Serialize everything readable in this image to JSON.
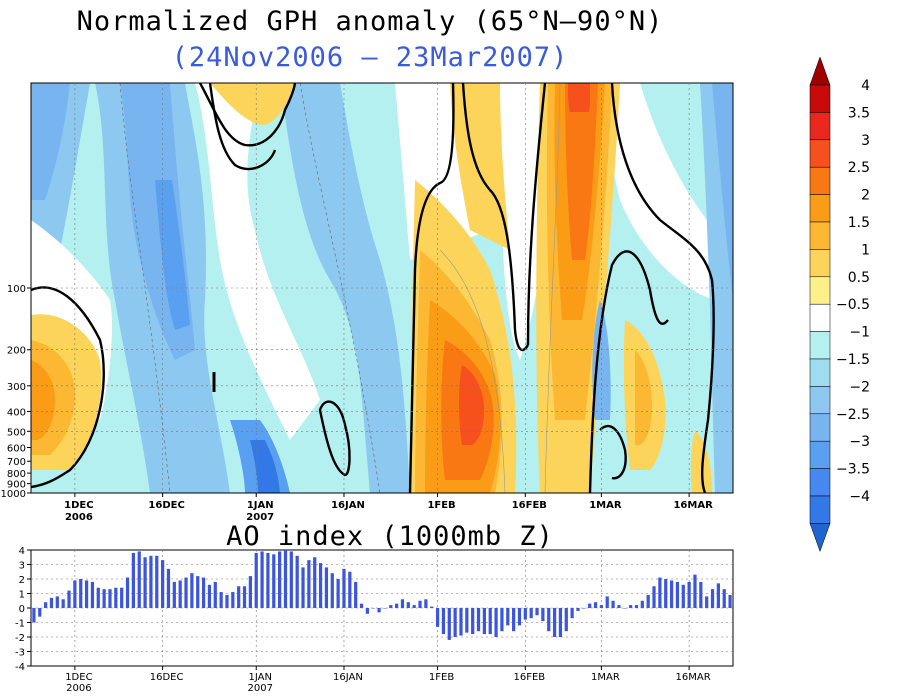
{
  "title": "Normalized GPH anomaly (65°N–90°N)",
  "subtitle": "(24Nov2006 – 23Mar2007)",
  "ao_title": "AO index (1000mb Z)",
  "chart_data": [
    {
      "type": "heatmap",
      "title": "Normalized GPH anomaly (65°N–90°N)",
      "subtitle": "(24Nov2006 – 23Mar2007)",
      "x_range": [
        "24Nov2006",
        "23Mar2007"
      ],
      "x_ticks": [
        {
          "day": 7,
          "label": "1DEC",
          "sub": "2006"
        },
        {
          "day": 22,
          "label": "16DEC",
          "sub": ""
        },
        {
          "day": 38,
          "label": "1JAN",
          "sub": "2007"
        },
        {
          "day": 53,
          "label": "16JAN",
          "sub": ""
        },
        {
          "day": 69,
          "label": "1FEB",
          "sub": ""
        },
        {
          "day": 84,
          "label": "16FEB",
          "sub": ""
        },
        {
          "day": 97,
          "label": "1MAR",
          "sub": ""
        },
        {
          "day": 112,
          "label": "16MAR",
          "sub": ""
        }
      ],
      "y_ticks": [
        "100",
        "200",
        "300",
        "400",
        "500",
        "600",
        "700",
        "800",
        "900",
        "1000"
      ],
      "y_log_pressure": true,
      "colorbar": {
        "labels": [
          "4",
          "3.5",
          "3",
          "2.5",
          "2",
          "1.5",
          "1",
          "0.5",
          "−0.5",
          "−1",
          "−1.5",
          "−2",
          "−2.5",
          "−3",
          "−3.5",
          "−4"
        ],
        "colors": [
          "#a00000",
          "#c80a0a",
          "#e8281e",
          "#f5501e",
          "#fa7814",
          "#fa9c16",
          "#fcb832",
          "#fcd45a",
          "#fff08a",
          "#ffffff",
          "#b4f0f0",
          "#a0dcf0",
          "#8cc8f0",
          "#78b4f0",
          "#5aa0f0",
          "#4688f0",
          "#3278e6",
          "#2064d2"
        ]
      }
    },
    {
      "type": "bar",
      "title": "AO index (1000mb Z)",
      "ylim": [
        -4,
        4
      ],
      "y_ticks": [
        "4",
        "3",
        "2",
        "1",
        "0",
        "-1",
        "-2",
        "-3",
        "-4"
      ],
      "x_ticks": [
        {
          "day": 7,
          "label": "1DEC",
          "sub": "2006"
        },
        {
          "day": 22,
          "label": "16DEC",
          "sub": ""
        },
        {
          "day": 38,
          "label": "1JAN",
          "sub": "2007"
        },
        {
          "day": 53,
          "label": "16JAN",
          "sub": ""
        },
        {
          "day": 69,
          "label": "1FEB",
          "sub": ""
        },
        {
          "day": 84,
          "label": "16FEB",
          "sub": ""
        },
        {
          "day": 97,
          "label": "1MAR",
          "sub": ""
        },
        {
          "day": 112,
          "label": "16MAR",
          "sub": ""
        }
      ],
      "bar_color": "#3b55e0",
      "values": [
        -1.0,
        -0.6,
        0.4,
        0.7,
        0.8,
        0.6,
        1.2,
        1.9,
        2.0,
        1.9,
        1.8,
        1.4,
        1.3,
        1.3,
        1.4,
        1.4,
        2.1,
        3.8,
        3.9,
        3.5,
        3.6,
        3.6,
        3.3,
        2.7,
        1.8,
        1.9,
        2.1,
        2.4,
        2.2,
        2.1,
        1.6,
        1.8,
        1.1,
        0.9,
        1.1,
        1.5,
        1.5,
        2.2,
        3.8,
        3.9,
        3.8,
        3.7,
        3.9,
        4.0,
        3.9,
        3.6,
        2.8,
        3.3,
        3.5,
        3.1,
        2.8,
        2.4,
        2.0,
        2.7,
        2.5,
        1.8,
        0.3,
        -0.4,
        0.0,
        -0.3,
        0.0,
        0.2,
        0.3,
        0.6,
        0.4,
        0.2,
        0.5,
        0.6,
        0.1,
        -1.3,
        -1.8,
        -2.2,
        -2.0,
        -1.9,
        -1.7,
        -1.8,
        -1.6,
        -1.8,
        -1.8,
        -2.0,
        -1.6,
        -1.2,
        -1.6,
        -1.2,
        -0.8,
        -0.7,
        -0.5,
        -0.9,
        -1.6,
        -2.0,
        -2.0,
        -1.6,
        -0.7,
        -0.2,
        0.0,
        0.3,
        0.4,
        0.2,
        0.8,
        0.5,
        0.2,
        0.0,
        0.2,
        0.2,
        0.5,
        0.9,
        1.5,
        2.1,
        2.0,
        1.9,
        1.8,
        1.6,
        1.8,
        2.3,
        1.8,
        0.8,
        1.3,
        1.7,
        1.3,
        0.9
      ]
    }
  ]
}
